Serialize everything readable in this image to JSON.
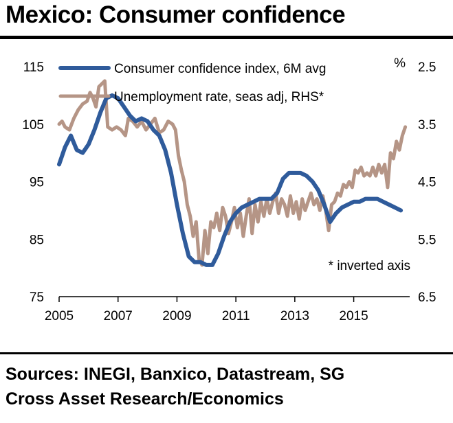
{
  "header": {
    "title": "Mexico: Consumer confidence"
  },
  "footer": {
    "source_line1": "Sources: INEGI, Banxico, Datastream, SG",
    "source_line2": "Cross Asset Research/Economics"
  },
  "colors": {
    "confidence": "#2f5b9b",
    "unemployment": "#b59586"
  },
  "chart_data": {
    "type": "line",
    "title": "Mexico: Consumer confidence",
    "annotation": "* inverted axis",
    "legend_placement": "top-left",
    "grid": false,
    "x_ticks": [
      "2005",
      "2007",
      "2009",
      "2011",
      "2013",
      "2015"
    ],
    "xlim": [
      2005,
      2016.9
    ],
    "y_left": {
      "ticks": [
        "115",
        "105",
        "95",
        "85",
        "75"
      ],
      "lim": [
        75,
        115
      ]
    },
    "y_right": {
      "unit": "%",
      "ticks": [
        "2.5",
        "3.5",
        "4.5",
        "5.5",
        "6.5"
      ],
      "lim": [
        2.5,
        6.5
      ],
      "inverted": true
    },
    "series": [
      {
        "name": "Consumer confidence  index,  6M avg",
        "axis": "left",
        "color": "#2f5b9b",
        "points": [
          [
            2005.0,
            98
          ],
          [
            2005.2,
            101
          ],
          [
            2005.4,
            103
          ],
          [
            2005.6,
            100.5
          ],
          [
            2005.8,
            100
          ],
          [
            2006.0,
            101.5
          ],
          [
            2006.2,
            104
          ],
          [
            2006.4,
            107
          ],
          [
            2006.6,
            109.5
          ],
          [
            2006.8,
            110
          ],
          [
            2007.0,
            109.5
          ],
          [
            2007.2,
            108
          ],
          [
            2007.4,
            106.5
          ],
          [
            2007.6,
            105.5
          ],
          [
            2007.8,
            106
          ],
          [
            2008.0,
            105.5
          ],
          [
            2008.2,
            104
          ],
          [
            2008.4,
            103
          ],
          [
            2008.6,
            100.5
          ],
          [
            2008.8,
            96.5
          ],
          [
            2009.0,
            91
          ],
          [
            2009.2,
            86
          ],
          [
            2009.4,
            82
          ],
          [
            2009.6,
            81
          ],
          [
            2009.8,
            81
          ],
          [
            2010.0,
            80.5
          ],
          [
            2010.2,
            80.5
          ],
          [
            2010.4,
            82.5
          ],
          [
            2010.6,
            85.5
          ],
          [
            2010.8,
            88
          ],
          [
            2011.0,
            89.5
          ],
          [
            2011.2,
            90.5
          ],
          [
            2011.4,
            91
          ],
          [
            2011.6,
            91.5
          ],
          [
            2011.8,
            92
          ],
          [
            2012.0,
            92
          ],
          [
            2012.2,
            92
          ],
          [
            2012.4,
            93
          ],
          [
            2012.6,
            95.5
          ],
          [
            2012.8,
            96.5
          ],
          [
            2013.0,
            96.5
          ],
          [
            2013.2,
            96.5
          ],
          [
            2013.4,
            96
          ],
          [
            2013.6,
            95
          ],
          [
            2013.8,
            93.5
          ],
          [
            2014.0,
            91
          ],
          [
            2014.2,
            88
          ],
          [
            2014.4,
            89.5
          ],
          [
            2014.6,
            90.5
          ],
          [
            2014.8,
            91
          ],
          [
            2015.0,
            91.5
          ],
          [
            2015.2,
            91.5
          ],
          [
            2015.4,
            92
          ],
          [
            2015.6,
            92
          ],
          [
            2015.8,
            92
          ],
          [
            2016.0,
            91.5
          ],
          [
            2016.2,
            91
          ],
          [
            2016.4,
            90.5
          ],
          [
            2016.6,
            90
          ]
        ]
      },
      {
        "name": "Unemployment  rate, seas adj, RHS*",
        "axis": "right",
        "color": "#b59586",
        "points": [
          [
            2005.0,
            3.5
          ],
          [
            2005.1,
            3.45
          ],
          [
            2005.2,
            3.55
          ],
          [
            2005.35,
            3.6
          ],
          [
            2005.5,
            3.4
          ],
          [
            2005.65,
            3.25
          ],
          [
            2005.8,
            3.15
          ],
          [
            2005.95,
            3.1
          ],
          [
            2006.05,
            2.95
          ],
          [
            2006.15,
            3.05
          ],
          [
            2006.25,
            3.2
          ],
          [
            2006.35,
            2.85
          ],
          [
            2006.45,
            2.8
          ],
          [
            2006.55,
            2.75
          ],
          [
            2006.65,
            3.55
          ],
          [
            2006.8,
            3.6
          ],
          [
            2006.95,
            3.55
          ],
          [
            2007.1,
            3.6
          ],
          [
            2007.25,
            3.7
          ],
          [
            2007.35,
            3.4
          ],
          [
            2007.5,
            3.45
          ],
          [
            2007.65,
            3.55
          ],
          [
            2007.8,
            3.45
          ],
          [
            2007.95,
            3.6
          ],
          [
            2008.1,
            3.5
          ],
          [
            2008.25,
            3.4
          ],
          [
            2008.4,
            3.65
          ],
          [
            2008.55,
            3.6
          ],
          [
            2008.7,
            3.45
          ],
          [
            2008.85,
            3.5
          ],
          [
            2008.95,
            3.6
          ],
          [
            2009.05,
            4.05
          ],
          [
            2009.15,
            4.3
          ],
          [
            2009.25,
            4.5
          ],
          [
            2009.35,
            4.9
          ],
          [
            2009.45,
            5.1
          ],
          [
            2009.55,
            5.45
          ],
          [
            2009.65,
            5.2
          ],
          [
            2009.75,
            5.85
          ],
          [
            2009.85,
            5.95
          ],
          [
            2009.95,
            5.35
          ],
          [
            2010.05,
            5.75
          ],
          [
            2010.15,
            5.2
          ],
          [
            2010.25,
            5.3
          ],
          [
            2010.35,
            5.05
          ],
          [
            2010.45,
            5.35
          ],
          [
            2010.55,
            4.95
          ],
          [
            2010.65,
            5.1
          ],
          [
            2010.75,
            5.4
          ],
          [
            2010.85,
            5.2
          ],
          [
            2010.95,
            4.95
          ],
          [
            2011.05,
            5.3
          ],
          [
            2011.15,
            5.05
          ],
          [
            2011.25,
            5.45
          ],
          [
            2011.35,
            5.1
          ],
          [
            2011.45,
            4.8
          ],
          [
            2011.55,
            5.4
          ],
          [
            2011.65,
            4.9
          ],
          [
            2011.75,
            5.2
          ],
          [
            2011.85,
            4.85
          ],
          [
            2011.95,
            5.1
          ],
          [
            2012.05,
            4.8
          ],
          [
            2012.15,
            5.05
          ],
          [
            2012.25,
            4.85
          ],
          [
            2012.35,
            4.7
          ],
          [
            2012.45,
            5.05
          ],
          [
            2012.55,
            4.8
          ],
          [
            2012.65,
            4.9
          ],
          [
            2012.75,
            5.1
          ],
          [
            2012.85,
            4.75
          ],
          [
            2012.95,
            5.05
          ],
          [
            2013.05,
            4.85
          ],
          [
            2013.15,
            5.15
          ],
          [
            2013.25,
            4.8
          ],
          [
            2013.35,
            5.0
          ],
          [
            2013.45,
            4.85
          ],
          [
            2013.55,
            4.7
          ],
          [
            2013.65,
            4.9
          ],
          [
            2013.75,
            4.8
          ],
          [
            2013.85,
            5.0
          ],
          [
            2013.95,
            4.75
          ],
          [
            2014.05,
            5.0
          ],
          [
            2014.15,
            5.35
          ],
          [
            2014.25,
            4.9
          ],
          [
            2014.35,
            4.85
          ],
          [
            2014.45,
            4.7
          ],
          [
            2014.55,
            4.75
          ],
          [
            2014.65,
            4.55
          ],
          [
            2014.75,
            4.6
          ],
          [
            2014.85,
            4.5
          ],
          [
            2014.95,
            4.6
          ],
          [
            2015.05,
            4.3
          ],
          [
            2015.15,
            4.35
          ],
          [
            2015.25,
            4.25
          ],
          [
            2015.35,
            4.4
          ],
          [
            2015.45,
            4.35
          ],
          [
            2015.55,
            4.4
          ],
          [
            2015.65,
            4.25
          ],
          [
            2015.75,
            4.4
          ],
          [
            2015.85,
            4.2
          ],
          [
            2015.95,
            4.35
          ],
          [
            2016.05,
            4.2
          ],
          [
            2016.15,
            4.6
          ],
          [
            2016.25,
            4.0
          ],
          [
            2016.35,
            4.1
          ],
          [
            2016.45,
            3.8
          ],
          [
            2016.55,
            3.95
          ],
          [
            2016.65,
            3.7
          ],
          [
            2016.75,
            3.55
          ]
        ]
      }
    ]
  }
}
